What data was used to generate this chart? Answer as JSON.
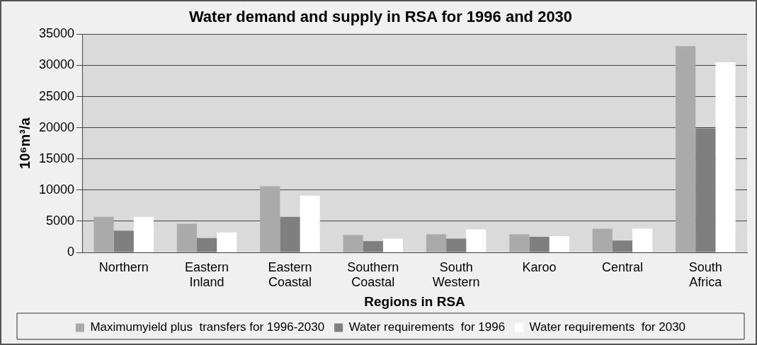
{
  "chart_data": {
    "type": "bar",
    "title": "Water demand and supply in RSA for 1996 and 2030",
    "xlabel": "Regions in RSA",
    "ylabel": "10⁶m³/a",
    "categories": [
      [
        "Northern"
      ],
      [
        "Eastern",
        "Inland"
      ],
      [
        "Eastern",
        "Coastal"
      ],
      [
        "Southern",
        "Coastal"
      ],
      [
        "South",
        "Western"
      ],
      [
        "Karoo"
      ],
      [
        "Central"
      ],
      [
        "South",
        "Africa"
      ]
    ],
    "series": [
      {
        "name": "Maximumyield plus  transfers for 1996-2030",
        "color": "#aaaaaa",
        "values": [
          5700,
          4600,
          10600,
          2800,
          2900,
          2900,
          3800,
          33100
        ]
      },
      {
        "name": "Water requirements  for 1996",
        "color": "#7f7f7f",
        "values": [
          3500,
          2300,
          5700,
          1800,
          2200,
          2500,
          1900,
          19900
        ]
      },
      {
        "name": "Water requirements  for 2030",
        "color": "#ffffff",
        "values": [
          5700,
          3200,
          9100,
          2200,
          3700,
          2600,
          3800,
          30500
        ]
      }
    ],
    "ylim": [
      0,
      35000
    ],
    "yticks": [
      0,
      5000,
      10000,
      15000,
      20000,
      25000,
      30000,
      35000
    ],
    "grid": "y",
    "legend": "bottom"
  }
}
